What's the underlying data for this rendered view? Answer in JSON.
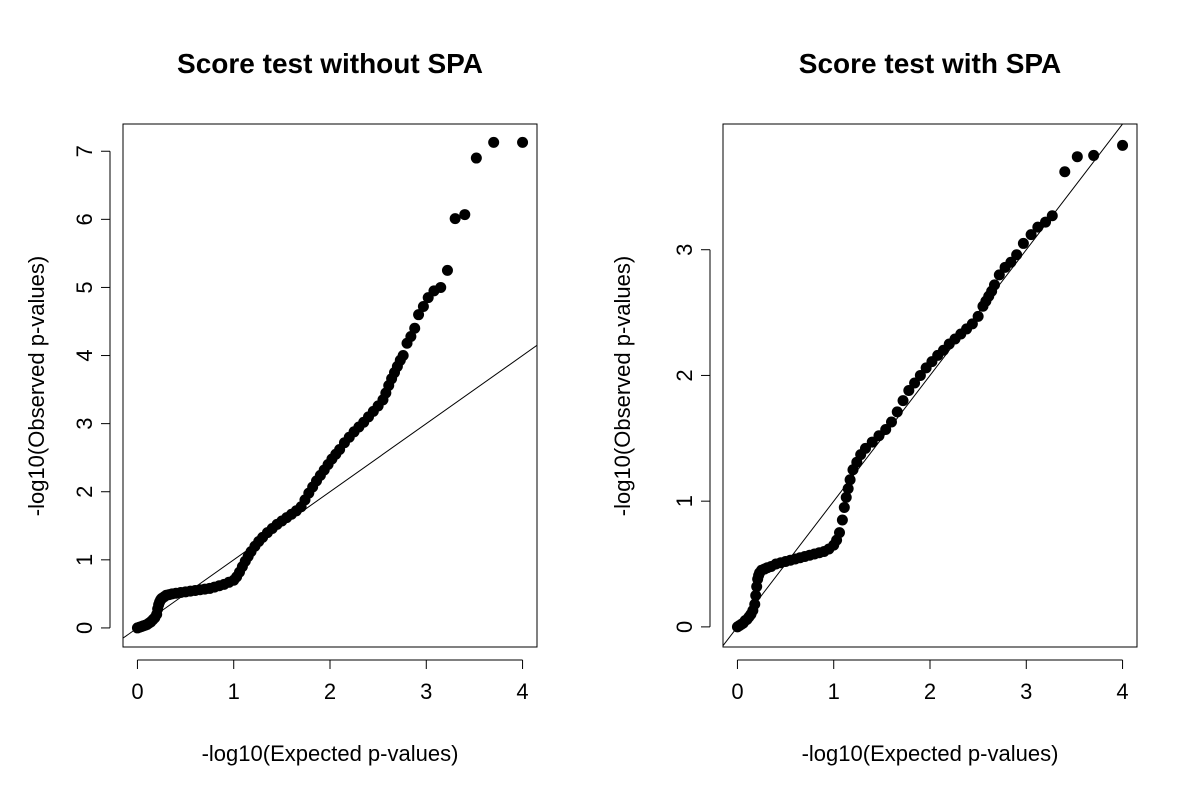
{
  "chart_data": [
    {
      "type": "scatter",
      "title": "Score test without SPA",
      "xlabel": "-log10(Expected p-values)",
      "ylabel": "-log10(Observed p-values)",
      "xlim": [
        -0.15,
        4.15
      ],
      "ylim": [
        -0.28,
        7.4
      ],
      "xticks": [
        0,
        1,
        2,
        3,
        4
      ],
      "yticks": [
        0,
        1,
        2,
        3,
        4,
        5,
        6,
        7
      ],
      "reference_line": {
        "slope": 1,
        "intercept": 0
      },
      "grid": false,
      "legend": "none",
      "series": [
        {
          "x": [
            0.0,
            0.02,
            0.04,
            0.06,
            0.08,
            0.1,
            0.12,
            0.14,
            0.16,
            0.18,
            0.2,
            0.21,
            0.22,
            0.23,
            0.24,
            0.25,
            0.26,
            0.28,
            0.3,
            0.33,
            0.36,
            0.4,
            0.45,
            0.5,
            0.55,
            0.6,
            0.65,
            0.7,
            0.75,
            0.8,
            0.85,
            0.9,
            0.95,
            1.0,
            1.03,
            1.06,
            1.09,
            1.12,
            1.15,
            1.18,
            1.22,
            1.26,
            1.3,
            1.35,
            1.4,
            1.45,
            1.5,
            1.55,
            1.6,
            1.65,
            1.7,
            1.74,
            1.78,
            1.82,
            1.86,
            1.9,
            1.94,
            1.98,
            2.02,
            2.06,
            2.1,
            2.15,
            2.2,
            2.25,
            2.3,
            2.35,
            2.4,
            2.45,
            2.5,
            2.55,
            2.58,
            2.61,
            2.64,
            2.67,
            2.7,
            2.73,
            2.76,
            2.8,
            2.84,
            2.88,
            2.92,
            2.97,
            3.02,
            3.08,
            3.15,
            3.22,
            3.3,
            3.4,
            3.52,
            3.7,
            4.0
          ],
          "y": [
            0.0,
            0.01,
            0.02,
            0.03,
            0.04,
            0.05,
            0.07,
            0.09,
            0.12,
            0.15,
            0.2,
            0.28,
            0.34,
            0.38,
            0.41,
            0.43,
            0.44,
            0.46,
            0.48,
            0.49,
            0.5,
            0.51,
            0.52,
            0.53,
            0.54,
            0.55,
            0.56,
            0.57,
            0.58,
            0.6,
            0.62,
            0.64,
            0.67,
            0.7,
            0.75,
            0.82,
            0.9,
            0.98,
            1.05,
            1.12,
            1.2,
            1.27,
            1.33,
            1.4,
            1.46,
            1.52,
            1.57,
            1.62,
            1.67,
            1.72,
            1.78,
            1.88,
            1.98,
            2.07,
            2.16,
            2.24,
            2.32,
            2.4,
            2.48,
            2.55,
            2.62,
            2.72,
            2.8,
            2.88,
            2.95,
            3.02,
            3.1,
            3.18,
            3.26,
            3.35,
            3.45,
            3.56,
            3.66,
            3.75,
            3.84,
            3.93,
            4.0,
            4.18,
            4.28,
            4.4,
            4.6,
            4.72,
            4.85,
            4.95,
            5.0,
            5.25,
            6.01,
            6.07,
            6.9,
            7.13,
            7.13
          ]
        }
      ]
    },
    {
      "type": "scatter",
      "title": "Score test with SPA",
      "xlabel": "-log10(Expected p-values)",
      "ylabel": "-log10(Observed p-values)",
      "xlim": [
        -0.15,
        4.15
      ],
      "ylim": [
        -0.16,
        4.0
      ],
      "xticks": [
        0,
        1,
        2,
        3,
        4
      ],
      "yticks": [
        0,
        1,
        2,
        3
      ],
      "reference_line": {
        "slope": 1,
        "intercept": 0
      },
      "grid": false,
      "legend": "none",
      "series": [
        {
          "x": [
            0.0,
            0.02,
            0.04,
            0.06,
            0.08,
            0.1,
            0.12,
            0.14,
            0.16,
            0.18,
            0.19,
            0.2,
            0.21,
            0.22,
            0.23,
            0.25,
            0.28,
            0.31,
            0.35,
            0.4,
            0.45,
            0.5,
            0.55,
            0.6,
            0.65,
            0.7,
            0.75,
            0.8,
            0.85,
            0.9,
            0.95,
            1.0,
            1.03,
            1.06,
            1.09,
            1.11,
            1.13,
            1.15,
            1.17,
            1.2,
            1.24,
            1.28,
            1.33,
            1.4,
            1.47,
            1.54,
            1.6,
            1.66,
            1.72,
            1.78,
            1.84,
            1.9,
            1.96,
            2.02,
            2.08,
            2.14,
            2.2,
            2.26,
            2.32,
            2.38,
            2.44,
            2.5,
            2.55,
            2.58,
            2.61,
            2.64,
            2.67,
            2.72,
            2.78,
            2.84,
            2.9,
            2.97,
            3.05,
            3.12,
            3.2,
            3.27,
            3.4,
            3.53,
            3.7,
            4.0
          ],
          "y": [
            0.0,
            0.01,
            0.02,
            0.03,
            0.05,
            0.06,
            0.08,
            0.1,
            0.13,
            0.18,
            0.25,
            0.32,
            0.38,
            0.41,
            0.43,
            0.45,
            0.46,
            0.47,
            0.48,
            0.5,
            0.51,
            0.52,
            0.53,
            0.54,
            0.55,
            0.56,
            0.57,
            0.58,
            0.59,
            0.6,
            0.62,
            0.65,
            0.69,
            0.75,
            0.85,
            0.95,
            1.03,
            1.1,
            1.17,
            1.25,
            1.31,
            1.37,
            1.42,
            1.47,
            1.52,
            1.57,
            1.63,
            1.71,
            1.8,
            1.88,
            1.94,
            2.0,
            2.06,
            2.11,
            2.16,
            2.2,
            2.25,
            2.29,
            2.33,
            2.37,
            2.41,
            2.47,
            2.55,
            2.59,
            2.63,
            2.67,
            2.72,
            2.8,
            2.86,
            2.9,
            2.96,
            3.05,
            3.12,
            3.18,
            3.22,
            3.27,
            3.62,
            3.74,
            3.75,
            3.83
          ]
        }
      ]
    }
  ]
}
